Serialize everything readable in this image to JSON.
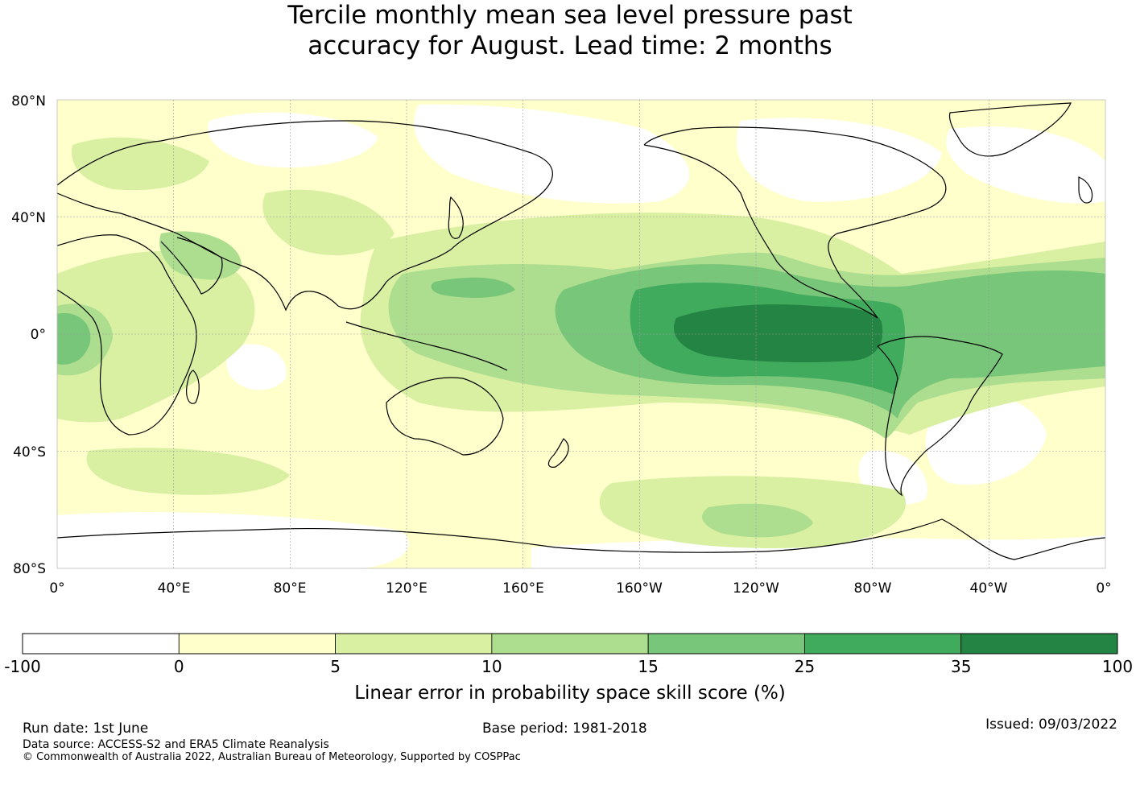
{
  "title": {
    "line1": "Tercile monthly mean sea level pressure past",
    "line2": "accuracy for August. Lead time: 2 months"
  },
  "map": {
    "lat_labels": [
      "80°N",
      "40°N",
      "0°",
      "40°S",
      "80°S"
    ],
    "lon_labels": [
      "0°",
      "40°E",
      "80°E",
      "120°E",
      "160°E",
      "160°W",
      "120°W",
      "80°W",
      "40°W",
      "0°"
    ],
    "projection": "equirectangular, centered on 180°",
    "gridlines": true
  },
  "colorbar": {
    "ticks": [
      "-100",
      "0",
      "5",
      "10",
      "15",
      "25",
      "35",
      "100"
    ],
    "colors": [
      "#ffffff",
      "#ffffcc",
      "#d9f0a3",
      "#addd8e",
      "#78c679",
      "#41ab5d",
      "#238443"
    ],
    "label": "Linear error in probability space skill score (%)"
  },
  "footer": {
    "run_date": "Run date: 1st June",
    "base_period": "Base period: 1981-2018",
    "issued": "Issued: 09/03/2022",
    "data_source": "Data source: ACCESS-S2 and ERA5 Climate Reanalysis",
    "copyright": "© Commonwealth of Australia 2022, Australian Bureau of Meteorology, Supported by COSPPac"
  }
}
